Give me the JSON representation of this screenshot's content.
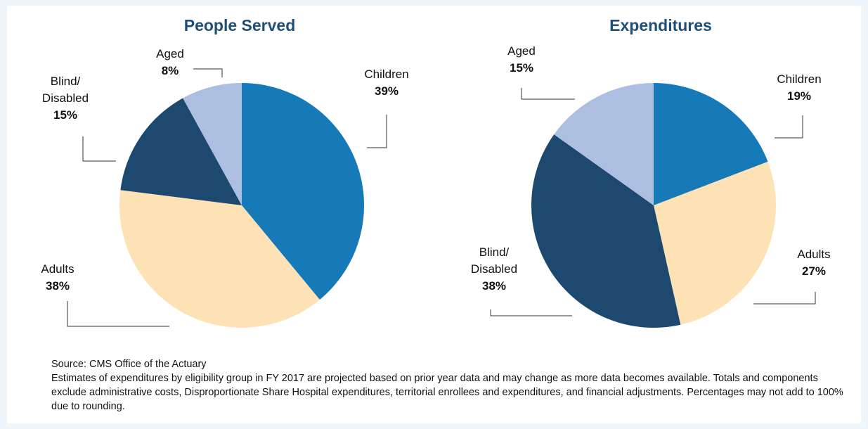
{
  "colors": {
    "title": "#1f4e79",
    "children": "#177ab8",
    "adults": "#fde2b6",
    "blind_disabled": "#1d4870",
    "aged": "#adbfe0"
  },
  "chart_data": [
    {
      "type": "pie",
      "title": "People Served",
      "slices": [
        {
          "label": [
            "Children"
          ],
          "value": 39,
          "value_label": "39%",
          "color": "#177ab8"
        },
        {
          "label": [
            "Adults"
          ],
          "value": 38,
          "value_label": "38%",
          "color": "#fde2b6"
        },
        {
          "label": [
            "Blind/",
            "Disabled"
          ],
          "value": 15,
          "value_label": "15%",
          "color": "#1d4870"
        },
        {
          "label": [
            "Aged"
          ],
          "value": 8,
          "value_label": "8%",
          "color": "#adbfe0"
        }
      ]
    },
    {
      "type": "pie",
      "title": "Expenditures",
      "slices": [
        {
          "label": [
            "Children"
          ],
          "value": 19,
          "value_label": "19%",
          "color": "#177ab8"
        },
        {
          "label": [
            "Adults"
          ],
          "value": 27,
          "value_label": "27%",
          "color": "#fde2b6"
        },
        {
          "label": [
            "Blind/",
            "Disabled"
          ],
          "value": 38,
          "value_label": "38%",
          "color": "#1d4870"
        },
        {
          "label": [
            "Aged"
          ],
          "value": 15,
          "value_label": "15%",
          "color": "#adbfe0"
        }
      ]
    }
  ],
  "notes": {
    "source": "Source: CMS Office of the Actuary",
    "description": "Estimates of expenditures by eligibility group in FY 2017 are projected based on prior year data and may change as more data becomes available. Totals and components exclude administrative costs, Disproportionate Share Hospital expenditures, territorial enrollees and expenditures, and financial adjustments. Percentages may not add to 100% due to rounding."
  }
}
